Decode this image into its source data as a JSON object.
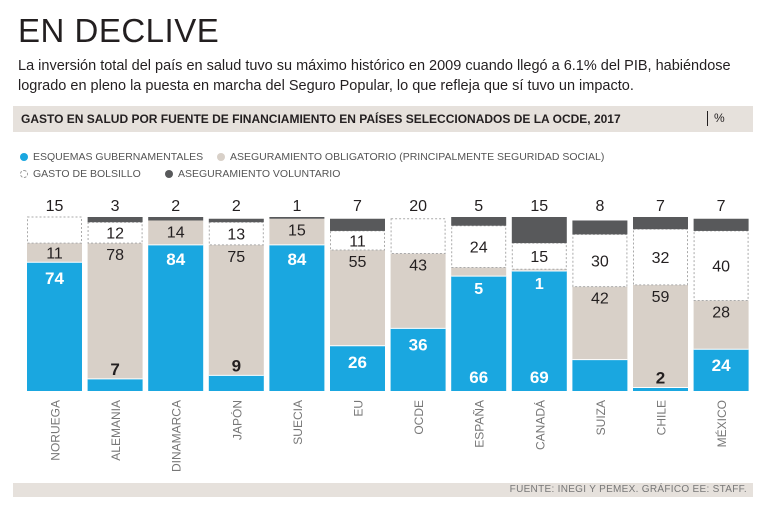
{
  "header": {
    "title": "EN DECLIVE",
    "subtitle": "La inversión total del país en salud tuvo su máximo histórico en 2009 cuando llegó a 6.1% del PIB, habiéndose logrado en pleno la puesta en marcha del Seguro Popular, lo que refleja que sí tuvo un impacto."
  },
  "chart_header": {
    "title": "GASTO EN SALUD POR FUENTE DE FINANCIAMIENTO EN PAÍSES SELECCIONADOS DE LA OCDE, 2017",
    "unit": "%"
  },
  "legend": {
    "gov": "ESQUEMAS GUBERNAMENTALES",
    "oblig": "ASEGURAMIENTO OBLIGATORIO (PRINCIPALMENTE SEGURIDAD SOCIAL)",
    "pocket": "GASTO DE BOLSILLO",
    "vol": "ASEGURAMIENTO VOLUNTARIO"
  },
  "colors": {
    "gov": "#1aa7e0",
    "oblig": "#d8d0c8",
    "pocket": "#ffffff",
    "vol": "#58595b",
    "text": "#231f20"
  },
  "footer": {
    "source": "FUENTE: INEGI Y PEMEX. GRÁFICO EE: STAFF."
  },
  "chart_data": {
    "type": "bar",
    "stacked": true,
    "title": "GASTO EN SALUD POR FUENTE DE FINANCIAMIENTO EN PAÍSES SELECCIONADOS DE LA OCDE, 2017",
    "ylabel": "%",
    "ylim": [
      0,
      100
    ],
    "categories": [
      "NORUEGA",
      "ALEMANIA",
      "DINAMARCA",
      "JAPÓN",
      "SUECIA",
      "EU",
      "OCDE",
      "ESPAÑA",
      "CANADÁ",
      "SUIZA",
      "CHILE",
      "MÉXICO"
    ],
    "series": [
      {
        "name": "ESQUEMAS GUBERNAMENTALES",
        "key": "gov",
        "values": [
          74,
          7,
          84,
          9,
          84,
          26,
          36,
          66,
          69,
          18,
          2,
          24
        ]
      },
      {
        "name": "ASEGURAMIENTO OBLIGATORIO (PRINCIPALMENTE SEGURIDAD SOCIAL)",
        "key": "oblig",
        "values": [
          11,
          78,
          14,
          75,
          15,
          55,
          43,
          5,
          1,
          42,
          59,
          28
        ]
      },
      {
        "name": "GASTO DE BOLSILLO",
        "key": "pocket",
        "values": [
          15,
          12,
          0,
          13,
          0,
          11,
          20,
          24,
          15,
          30,
          32,
          40
        ]
      },
      {
        "name": "ASEGURAMIENTO VOLUNTARIO",
        "key": "vol",
        "values": [
          0,
          3,
          2,
          2,
          1,
          7,
          0,
          5,
          15,
          8,
          7,
          7
        ]
      }
    ],
    "labels": [
      {
        "top": "15",
        "pocket": "",
        "oblig": "11",
        "gov": "74"
      },
      {
        "top": "3",
        "pocket": "12",
        "oblig": "78",
        "gov": "7"
      },
      {
        "top": "2",
        "pocket": "",
        "oblig": "14",
        "gov": "84"
      },
      {
        "top": "2",
        "pocket": "13",
        "oblig": "75",
        "gov": "9"
      },
      {
        "top": "1",
        "pocket": "",
        "oblig": "15",
        "gov": "84"
      },
      {
        "top": "7",
        "pocket": "11",
        "oblig": "55",
        "gov": "26"
      },
      {
        "top": "20",
        "pocket": "",
        "oblig": "43",
        "gov": "36"
      },
      {
        "top": "5",
        "pocket": "24",
        "oblig": "5",
        "gov": "66"
      },
      {
        "top": "15",
        "pocket": "15",
        "oblig": "1",
        "gov": "69"
      },
      {
        "top": "8",
        "pocket": "30",
        "oblig": "42",
        "gov": ""
      },
      {
        "top": "7",
        "pocket": "32",
        "oblig": "59",
        "gov": "2"
      },
      {
        "top": "7",
        "pocket": "40",
        "oblig": "28",
        "gov": "24"
      }
    ]
  }
}
